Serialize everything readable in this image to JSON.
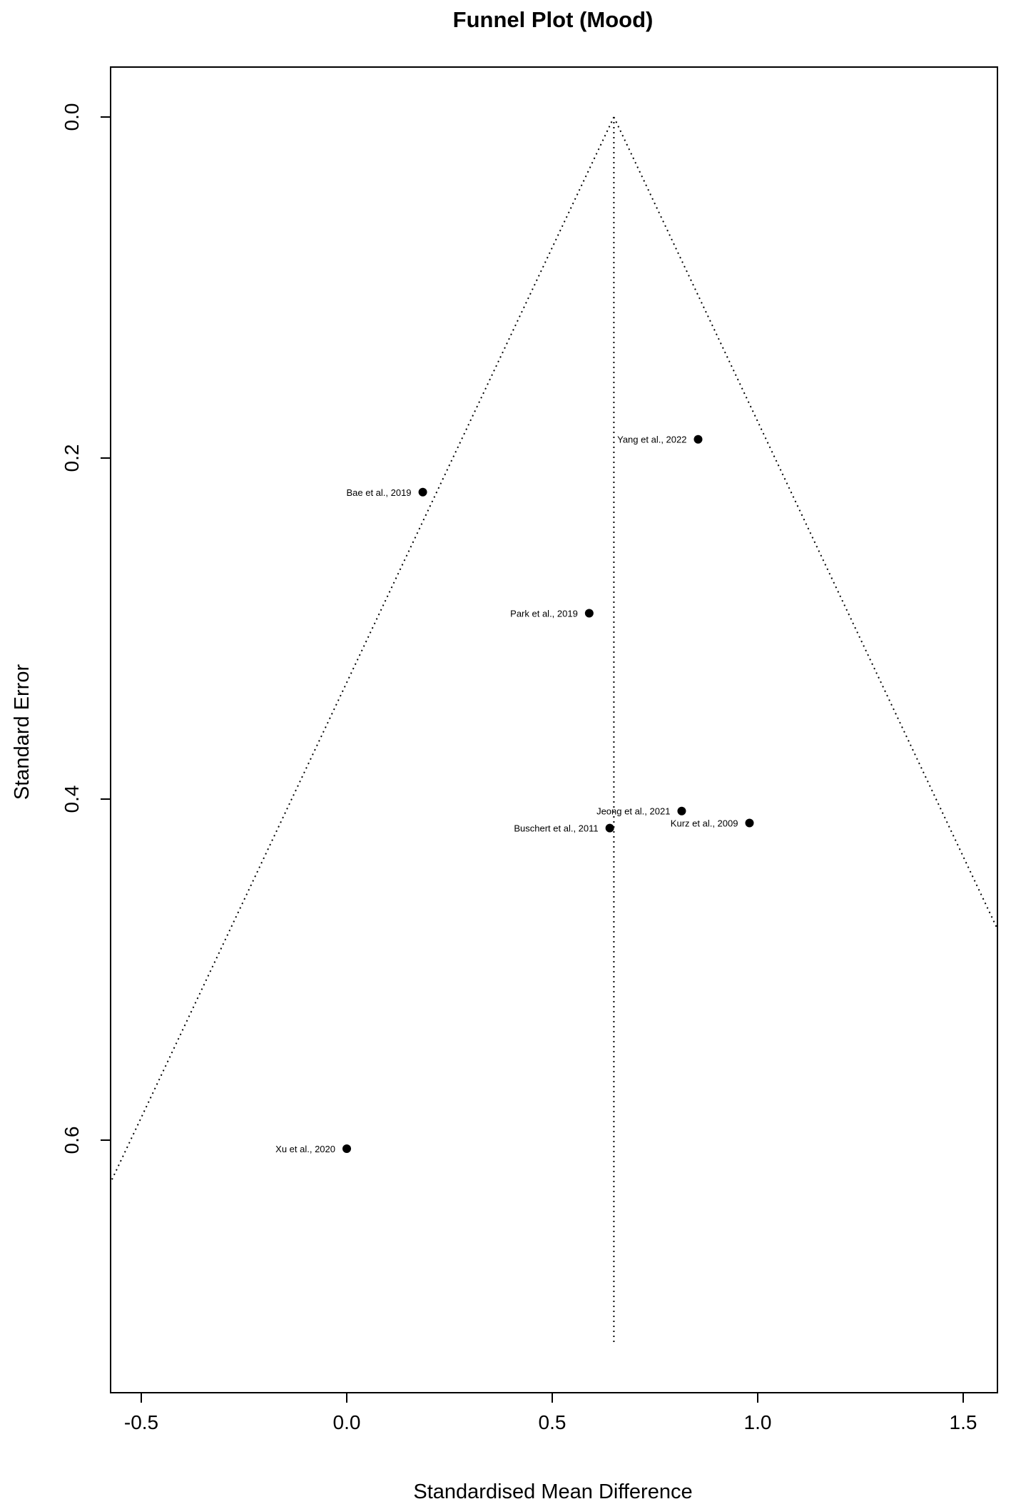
{
  "chart_data": {
    "type": "scatter",
    "title": "Funnel Plot (Mood)",
    "xlabel": "Standardised Mean Difference",
    "ylabel": "Standard Error",
    "xlim": [
      -0.6,
      1.58
    ],
    "ylim": [
      0,
      0.75
    ],
    "y_reversed": true,
    "x_ticks": [
      -0.5,
      0.0,
      0.5,
      1.0,
      1.5
    ],
    "x_tick_labels": [
      "-0.5",
      "0.0",
      "0.5",
      "1.0",
      "1.5"
    ],
    "y_ticks": [
      0.0,
      0.2,
      0.4,
      0.6
    ],
    "y_tick_labels": [
      "0.0",
      "0.2",
      "0.4",
      "0.6"
    ],
    "summary_estimate": 0.65,
    "funnel_max_se": 0.72,
    "grid": false,
    "points": [
      {
        "label": "Yang et al., 2022",
        "x": 0.855,
        "y": 0.189
      },
      {
        "label": "Bae et al., 2019",
        "x": 0.185,
        "y": 0.22
      },
      {
        "label": "Park et al., 2019",
        "x": 0.59,
        "y": 0.291
      },
      {
        "label": "Jeong et al., 2021",
        "x": 0.815,
        "y": 0.407
      },
      {
        "label": "Kurz et al., 2009",
        "x": 0.98,
        "y": 0.414
      },
      {
        "label": "Buschert et al., 2011",
        "x": 0.64,
        "y": 0.417
      },
      {
        "label": "Xu et al., 2020",
        "x": 0.0,
        "y": 0.605
      }
    ]
  }
}
